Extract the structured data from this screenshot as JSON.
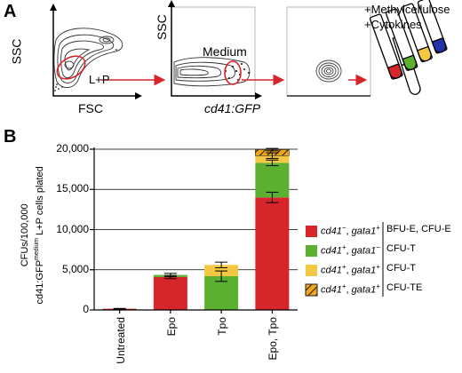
{
  "panel_a": {
    "letter": "A",
    "plot1": {
      "ylabel": "SSC",
      "xlabel": "FSC",
      "gate_label": "L+P"
    },
    "plot2": {
      "ylabel": "SSC",
      "xlabel": "cd41:GFP",
      "gate_label": "Medium"
    },
    "culture": {
      "line1": "+Methylcellulose",
      "line2": "+Cytokines"
    }
  },
  "panel_b": {
    "letter": "B",
    "ylabel_line1": "CFUs/100,000",
    "ylabel_line2_pre": "cd41:GFP",
    "ylabel_line2_sup": "medium",
    "ylabel_line2_post": " L+P cells plated"
  },
  "chart_data": {
    "type": "bar",
    "stacked": true,
    "categories": [
      "Untreated",
      "Epo",
      "Tpo",
      "Epo, Tpo"
    ],
    "ylim": [
      0,
      20000
    ],
    "yticks": [
      0,
      5000,
      10000,
      15000,
      20000
    ],
    "ytick_labels": [
      "0",
      "5,000",
      "10,000",
      "15,000",
      "20,000"
    ],
    "series": [
      {
        "color": "#d7262b",
        "values": [
          150,
          4100,
          0,
          14000
        ]
      },
      {
        "color": "#5cb030",
        "values": [
          0,
          250,
          4200,
          4300
        ]
      },
      {
        "color": "#f4c842",
        "values": [
          0,
          0,
          1400,
          900
        ]
      },
      {
        "color": "#f2a71b",
        "hatched": true,
        "values": [
          0,
          0,
          0,
          750
        ]
      }
    ],
    "error_bars": [
      {
        "category": "Untreated",
        "value": 150,
        "err": 40
      },
      {
        "category": "Epo",
        "value": 4100,
        "err": 200
      },
      {
        "category": "Epo",
        "value": 4350,
        "err": 200
      },
      {
        "category": "Tpo",
        "value": 4200,
        "err": 650
      },
      {
        "category": "Tpo",
        "value": 5600,
        "err": 350
      },
      {
        "category": "Epo, Tpo",
        "value": 14000,
        "err": 650
      },
      {
        "category": "Epo, Tpo",
        "value": 18300,
        "err": 350
      },
      {
        "category": "Epo, Tpo",
        "value": 19200,
        "err": 350
      },
      {
        "category": "Epo, Tpo",
        "value": 19950,
        "err": 150
      }
    ],
    "legend": [
      {
        "gene1": "cd41",
        "sign1": "−",
        "gene2": "gata1",
        "sign2": "+",
        "label": "BFU-E, CFU-E",
        "color": "#d7262b"
      },
      {
        "gene1": "cd41",
        "sign1": "+",
        "gene2": "gata1",
        "sign2": "−",
        "label": "CFU-T",
        "color": "#5cb030"
      },
      {
        "gene1": "cd41",
        "sign1": "+",
        "gene2": "gata1",
        "sign2": "+",
        "label": "CFU-T",
        "color": "#f4c842"
      },
      {
        "gene1": "cd41",
        "sign1": "+",
        "gene2": "gata1",
        "sign2": "+",
        "label": "CFU-TE",
        "color": "#f2a71b",
        "hatched": true
      }
    ],
    "legend_placement": "right"
  }
}
